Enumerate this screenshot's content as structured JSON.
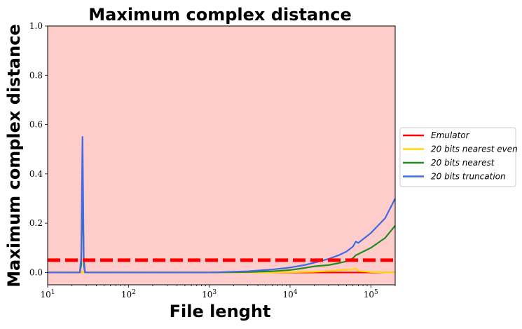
{
  "chart_data": {
    "type": "line",
    "title": "Maximum complex distance",
    "xlabel": "File lenght",
    "ylabel": "Maximum complex distance",
    "xscale": "log",
    "xlim": [
      10,
      200000
    ],
    "ylim": [
      -0.05,
      1.0
    ],
    "x_ticks": [
      10,
      100,
      1000,
      10000,
      100000
    ],
    "x_tick_labels": [
      {
        "base": "10",
        "exp": "1"
      },
      {
        "base": "10",
        "exp": "2"
      },
      {
        "base": "10",
        "exp": "3"
      },
      {
        "base": "10",
        "exp": "4"
      },
      {
        "base": "10",
        "exp": "5"
      }
    ],
    "y_ticks": [
      0.0,
      0.2,
      0.4,
      0.6,
      0.8,
      1.0
    ],
    "y_tick_labels": [
      "0.0",
      "0.2",
      "0.4",
      "0.6",
      "0.8",
      "1.0"
    ],
    "background_fill": "#ffcccc",
    "threshold": {
      "y": 0.05,
      "color": "#ff0000",
      "style": "dashed"
    },
    "legend_position": "outside-right",
    "series": [
      {
        "name": "Emulator",
        "color": "#ff0000",
        "x": [
          10,
          1000,
          10000,
          50000,
          100000,
          200000
        ],
        "y": [
          0.0,
          0.0,
          0.0,
          0.0,
          0.0,
          0.0
        ]
      },
      {
        "name": "20 bits nearest even",
        "color": "#ffd700",
        "x": [
          10,
          1000,
          5000,
          10000,
          20000,
          30000,
          40000,
          50000,
          60000,
          65000,
          70000,
          100000,
          150000,
          200000
        ],
        "y": [
          0.0,
          0.0,
          0.0,
          0.001,
          0.003,
          0.006,
          0.009,
          0.011,
          0.013,
          0.016,
          0.006,
          0.002,
          0.0,
          0.0
        ]
      },
      {
        "name": "20 bits nearest",
        "color": "#228b22",
        "x": [
          10,
          25,
          26,
          27,
          28,
          29,
          100,
          1000,
          3000,
          6000,
          10000,
          15000,
          20000,
          30000,
          40000,
          50000,
          60000,
          65000,
          70000,
          100000,
          150000,
          200000
        ],
        "y": [
          0.0,
          0.0,
          0.03,
          0.4,
          0.03,
          0.0,
          0.0,
          0.0,
          0.002,
          0.005,
          0.01,
          0.018,
          0.025,
          0.03,
          0.038,
          0.045,
          0.058,
          0.07,
          0.075,
          0.1,
          0.14,
          0.19
        ]
      },
      {
        "name": "20 bits truncation",
        "color": "#4169e1",
        "x": [
          10,
          25,
          26,
          27,
          28,
          29,
          100,
          1000,
          3000,
          6000,
          10000,
          15000,
          20000,
          30000,
          40000,
          50000,
          60000,
          65000,
          70000,
          100000,
          150000,
          200000
        ],
        "y": [
          0.0,
          0.0,
          0.06,
          0.55,
          0.06,
          0.0,
          0.0,
          0.0,
          0.005,
          0.012,
          0.02,
          0.03,
          0.04,
          0.055,
          0.07,
          0.085,
          0.105,
          0.125,
          0.12,
          0.16,
          0.22,
          0.3
        ]
      }
    ]
  }
}
